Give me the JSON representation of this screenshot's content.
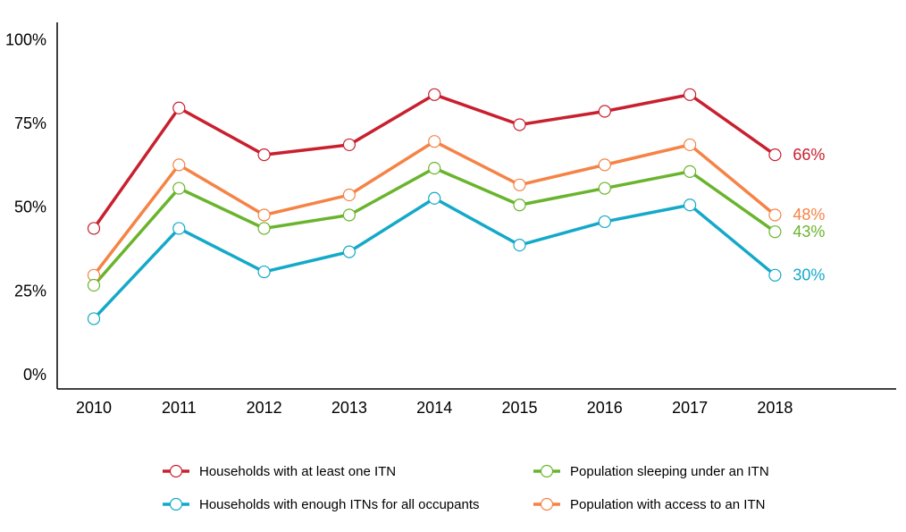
{
  "chart_data": {
    "type": "line",
    "categories": [
      "2010",
      "2011",
      "2012",
      "2013",
      "2014",
      "2015",
      "2016",
      "2017",
      "2018"
    ],
    "series": [
      {
        "name": "Households with at least one ITN",
        "color": "#c8202f",
        "values": [
          44,
          80,
          66,
          69,
          84,
          75,
          79,
          84,
          66
        ],
        "value_labels": [
          null,
          null,
          null,
          null,
          null,
          null,
          null,
          null,
          "66%"
        ]
      },
      {
        "name": "Population sleeping under an ITN",
        "color": "#6ab42d",
        "values": [
          27,
          56,
          44,
          48,
          62,
          51,
          56,
          61,
          43
        ],
        "value_labels": [
          null,
          null,
          null,
          null,
          null,
          null,
          null,
          null,
          "43%"
        ]
      },
      {
        "name": "Households with enough ITNs for all occupants",
        "color": "#14a9c8",
        "values": [
          17,
          44,
          31,
          37,
          53,
          39,
          46,
          51,
          30
        ],
        "value_labels": [
          null,
          null,
          null,
          null,
          null,
          null,
          null,
          null,
          "30%"
        ]
      },
      {
        "name": "Population with access to an ITN",
        "color": "#f58345",
        "values": [
          30,
          63,
          48,
          54,
          70,
          57,
          63,
          69,
          48
        ],
        "value_labels": [
          null,
          null,
          null,
          null,
          null,
          null,
          null,
          null,
          "48%"
        ]
      }
    ],
    "ylim": [
      -4,
      105.6
    ],
    "yticks": [
      {
        "value": 0,
        "label": "0%"
      },
      {
        "value": 25,
        "label": "25%"
      },
      {
        "value": 50,
        "label": "50%"
      },
      {
        "value": 75,
        "label": "75%"
      },
      {
        "value": 100,
        "label": "100%"
      }
    ],
    "grid": false
  }
}
